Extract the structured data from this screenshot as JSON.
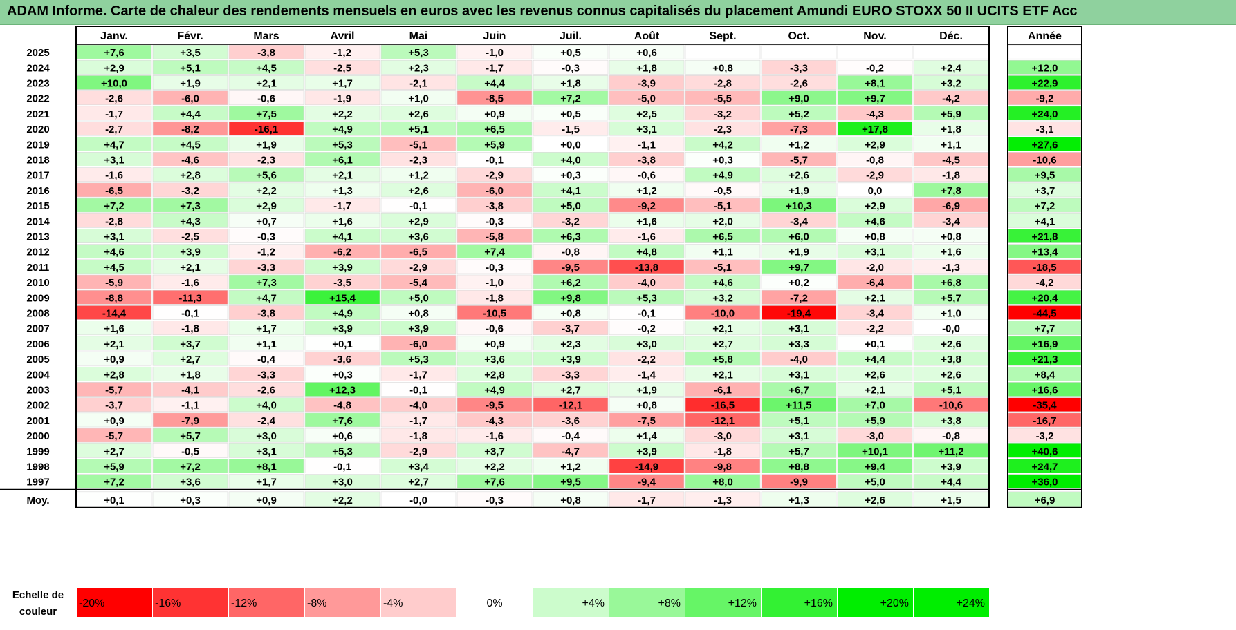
{
  "title": "ADAM Informe. Carte de chaleur des rendements mensuels en euros avec les revenus connus capitalisés du placement Amundi EURO STOXX 50 II UCITS ETF Acc",
  "chart_data": {
    "type": "heatmap",
    "months": [
      "Janv.",
      "Févr.",
      "Mars",
      "Avril",
      "Mai",
      "Juin",
      "Juil.",
      "Août",
      "Sept.",
      "Oct.",
      "Nov.",
      "Déc."
    ],
    "year_column_label": "Année",
    "rows": [
      {
        "label": "2025",
        "values": [
          "+7,6",
          "+3,5",
          "-3,8",
          "-1,2",
          "+5,3",
          "-1,0",
          "+0,5",
          "+0,6",
          "",
          "",
          "",
          ""
        ],
        "year": ""
      },
      {
        "label": "2024",
        "values": [
          "+2,9",
          "+5,1",
          "+4,5",
          "-2,5",
          "+2,3",
          "-1,7",
          "-0,3",
          "+1,8",
          "+0,8",
          "-3,3",
          "-0,2",
          "+2,4"
        ],
        "year": "+12,0"
      },
      {
        "label": "2023",
        "values": [
          "+10,0",
          "+1,9",
          "+2,1",
          "+1,7",
          "-2,1",
          "+4,4",
          "+1,8",
          "-3,9",
          "-2,8",
          "-2,6",
          "+8,1",
          "+3,2"
        ],
        "year": "+22,9"
      },
      {
        "label": "2022",
        "values": [
          "-2,6",
          "-6,0",
          "-0,6",
          "-1,9",
          "+1,0",
          "-8,5",
          "+7,2",
          "-5,0",
          "-5,5",
          "+9,0",
          "+9,7",
          "-4,2"
        ],
        "year": "-9,2"
      },
      {
        "label": "2021",
        "values": [
          "-1,7",
          "+4,4",
          "+7,5",
          "+2,2",
          "+2,6",
          "+0,9",
          "+0,5",
          "+2,5",
          "-3,2",
          "+5,2",
          "-4,3",
          "+5,9"
        ],
        "year": "+24,0"
      },
      {
        "label": "2020",
        "values": [
          "-2,7",
          "-8,2",
          "-16,1",
          "+4,9",
          "+5,1",
          "+6,5",
          "-1,5",
          "+3,1",
          "-2,3",
          "-7,3",
          "+17,8",
          "+1,8"
        ],
        "year": "-3,1"
      },
      {
        "label": "2019",
        "values": [
          "+4,7",
          "+4,5",
          "+1,9",
          "+5,3",
          "-5,1",
          "+5,9",
          "+0,0",
          "-1,1",
          "+4,2",
          "+1,2",
          "+2,9",
          "+1,1"
        ],
        "year": "+27,6"
      },
      {
        "label": "2018",
        "values": [
          "+3,1",
          "-4,6",
          "-2,3",
          "+6,1",
          "-2,3",
          "-0,1",
          "+4,0",
          "-3,8",
          "+0,3",
          "-5,7",
          "-0,8",
          "-4,5"
        ],
        "year": "-10,6"
      },
      {
        "label": "2017",
        "values": [
          "-1,6",
          "+2,8",
          "+5,6",
          "+2,1",
          "+1,2",
          "-2,9",
          "+0,3",
          "-0,6",
          "+4,9",
          "+2,6",
          "-2,9",
          "-1,8"
        ],
        "year": "+9,5"
      },
      {
        "label": "2016",
        "values": [
          "-6,5",
          "-3,2",
          "+2,2",
          "+1,3",
          "+2,6",
          "-6,0",
          "+4,1",
          "+1,2",
          "-0,5",
          "+1,9",
          "0,0",
          "+7,8"
        ],
        "year": "+3,7"
      },
      {
        "label": "2015",
        "values": [
          "+7,2",
          "+7,3",
          "+2,9",
          "-1,7",
          "-0,1",
          "-3,8",
          "+5,0",
          "-9,2",
          "-5,1",
          "+10,3",
          "+2,9",
          "-6,9"
        ],
        "year": "+7,2"
      },
      {
        "label": "2014",
        "values": [
          "-2,8",
          "+4,3",
          "+0,7",
          "+1,6",
          "+2,9",
          "-0,3",
          "-3,2",
          "+1,6",
          "+2,0",
          "-3,4",
          "+4,6",
          "-3,4"
        ],
        "year": "+4,1"
      },
      {
        "label": "2013",
        "values": [
          "+3,1",
          "-2,5",
          "-0,3",
          "+4,1",
          "+3,6",
          "-5,8",
          "+6,3",
          "-1,6",
          "+6,5",
          "+6,0",
          "+0,8",
          "+0,8"
        ],
        "year": "+21,8"
      },
      {
        "label": "2012",
        "values": [
          "+4,6",
          "+3,9",
          "-1,2",
          "-6,2",
          "-6,5",
          "+7,4",
          "-0,8",
          "+4,8",
          "+1,1",
          "+1,9",
          "+3,1",
          "+1,6"
        ],
        "year": "+13,4"
      },
      {
        "label": "2011",
        "values": [
          "+4,5",
          "+2,1",
          "-3,3",
          "+3,9",
          "-2,9",
          "-0,3",
          "-9,5",
          "-13,8",
          "-5,1",
          "+9,7",
          "-2,0",
          "-1,3"
        ],
        "year": "-18,5"
      },
      {
        "label": "2010",
        "values": [
          "-5,9",
          "-1,6",
          "+7,3",
          "-3,5",
          "-5,4",
          "-1,0",
          "+6,2",
          "-4,0",
          "+4,6",
          "+0,2",
          "-6,4",
          "+6,8"
        ],
        "year": "-4,2"
      },
      {
        "label": "2009",
        "values": [
          "-8,8",
          "-11,3",
          "+4,7",
          "+15,4",
          "+5,0",
          "-1,8",
          "+9,8",
          "+5,3",
          "+3,2",
          "-7,2",
          "+2,1",
          "+5,7"
        ],
        "year": "+20,4"
      },
      {
        "label": "2008",
        "values": [
          "-14,4",
          "-0,1",
          "-3,8",
          "+4,9",
          "+0,8",
          "-10,5",
          "+0,8",
          "-0,1",
          "-10,0",
          "-19,4",
          "-3,4",
          "+1,0"
        ],
        "year": "-44,5"
      },
      {
        "label": "2007",
        "values": [
          "+1,6",
          "-1,8",
          "+1,7",
          "+3,9",
          "+3,9",
          "-0,6",
          "-3,7",
          "-0,2",
          "+2,1",
          "+3,1",
          "-2,2",
          "-0,0"
        ],
        "year": "+7,7"
      },
      {
        "label": "2006",
        "values": [
          "+2,1",
          "+3,7",
          "+1,1",
          "+0,1",
          "-6,0",
          "+0,9",
          "+2,3",
          "+3,0",
          "+2,7",
          "+3,3",
          "+0,1",
          "+2,6"
        ],
        "year": "+16,9"
      },
      {
        "label": "2005",
        "values": [
          "+0,9",
          "+2,7",
          "-0,4",
          "-3,6",
          "+5,3",
          "+3,6",
          "+3,9",
          "-2,2",
          "+5,8",
          "-4,0",
          "+4,4",
          "+3,8"
        ],
        "year": "+21,3"
      },
      {
        "label": "2004",
        "values": [
          "+2,8",
          "+1,8",
          "-3,3",
          "+0,3",
          "-1,7",
          "+2,8",
          "-3,3",
          "-1,4",
          "+2,1",
          "+3,1",
          "+2,6",
          "+2,6"
        ],
        "year": "+8,4"
      },
      {
        "label": "2003",
        "values": [
          "-5,7",
          "-4,1",
          "-2,6",
          "+12,3",
          "-0,1",
          "+4,9",
          "+2,7",
          "+1,9",
          "-6,1",
          "+6,7",
          "+2,1",
          "+5,1"
        ],
        "year": "+16,6"
      },
      {
        "label": "2002",
        "values": [
          "-3,7",
          "-1,1",
          "+4,0",
          "-4,8",
          "-4,0",
          "-9,5",
          "-12,1",
          "+0,8",
          "-16,5",
          "+11,5",
          "+7,0",
          "-10,6"
        ],
        "year": "-35,4"
      },
      {
        "label": "2001",
        "values": [
          "+0,9",
          "-7,9",
          "-2,4",
          "+7,6",
          "-1,7",
          "-4,3",
          "-3,6",
          "-7,5",
          "-12,1",
          "+5,1",
          "+5,9",
          "+3,8"
        ],
        "year": "-16,7"
      },
      {
        "label": "2000",
        "values": [
          "-5,7",
          "+5,7",
          "+3,0",
          "+0,6",
          "-1,8",
          "-1,6",
          "-0,4",
          "+1,4",
          "-3,0",
          "+3,1",
          "-3,0",
          "-0,8"
        ],
        "year": "-3,2"
      },
      {
        "label": "1999",
        "values": [
          "+2,7",
          "-0,5",
          "+3,1",
          "+5,3",
          "-2,9",
          "+3,7",
          "-4,7",
          "+3,9",
          "-1,8",
          "+5,7",
          "+10,1",
          "+11,2"
        ],
        "year": "+40,6"
      },
      {
        "label": "1998",
        "values": [
          "+5,9",
          "+7,2",
          "+8,1",
          "-0,1",
          "+3,4",
          "+2,2",
          "+1,2",
          "-14,9",
          "-9,8",
          "+8,8",
          "+9,4",
          "+3,9"
        ],
        "year": "+24,7"
      },
      {
        "label": "1997",
        "values": [
          "+7,2",
          "+3,6",
          "+1,7",
          "+3,0",
          "+2,7",
          "+7,6",
          "+9,5",
          "-9,4",
          "+8,0",
          "-9,9",
          "+5,0",
          "+4,4"
        ],
        "year": "+36,0"
      }
    ],
    "average": {
      "label": "Moy.",
      "values": [
        "+0,1",
        "+0,3",
        "+0,9",
        "+2,2",
        "-0,0",
        "-0,3",
        "+0,8",
        "-1,7",
        "-1,3",
        "+1,3",
        "+2,6",
        "+1,5"
      ],
      "year": "+6,9"
    },
    "scale": {
      "label_line1": "Echelle de",
      "label_line2": "couleur",
      "stops": [
        "-20%",
        "-16%",
        "-12%",
        "-8%",
        "-4%",
        "0%",
        "+4%",
        "+8%",
        "+12%",
        "+16%",
        "+20%",
        "+24%"
      ]
    },
    "colors": {
      "negative": "#ff0000",
      "zero": "#ffffff",
      "positive": "#00ee00",
      "title_bar": "#8fd19e"
    }
  }
}
